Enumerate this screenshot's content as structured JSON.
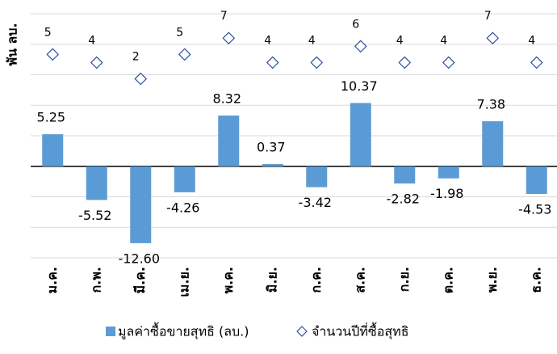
{
  "chart_data": {
    "type": "bar",
    "y_label": "พัน ลบ.",
    "categories": [
      "ม.ค.",
      "ก.พ.",
      "มี.ค.",
      "เม.ย.",
      "พ.ค.",
      "มิ.ย.",
      "ก.ค.",
      "ส.ค.",
      "ก.ย.",
      "ต.ค.",
      "พ.ย.",
      "ธ.ค."
    ],
    "series": [
      {
        "name": "มูลค่าซื้อขายสุทธิ (ลบ.)",
        "color": "#5b9bd5",
        "type": "bar",
        "values": [
          5.25,
          -5.52,
          -12.6,
          -4.26,
          8.32,
          0.37,
          -3.42,
          10.37,
          -2.82,
          -1.98,
          7.38,
          -4.53
        ],
        "value_labels": [
          "5.25",
          "-5.52",
          "-12.60",
          "-4.26",
          "8.32",
          "0.37",
          "-3.42",
          "10.37",
          "-2.82",
          "-1.98",
          "7.38",
          "-4.53"
        ]
      },
      {
        "name": "จำนวนปีที่ซื้อสุทธิ",
        "color": "#2f4f9f",
        "type": "scatter",
        "axis": "y2",
        "values": [
          5,
          4,
          2,
          5,
          7,
          4,
          4,
          6,
          4,
          4,
          7,
          4
        ]
      }
    ],
    "ylim": [
      -15,
      25
    ],
    "yticks": [
      -15,
      -10,
      -5,
      0,
      5,
      10,
      15,
      20,
      25
    ],
    "y2lim": [
      -20,
      10
    ],
    "grid": true,
    "legend": "bottom"
  }
}
